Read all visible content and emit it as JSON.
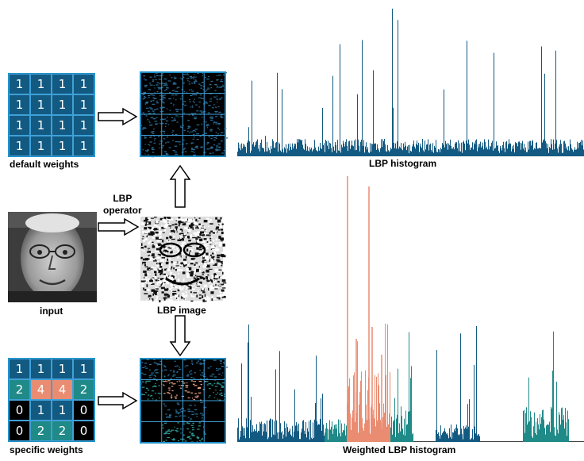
{
  "colors": {
    "blue": "#135a82",
    "teal": "#1f8a88",
    "salmon": "#ea8c72",
    "black": "#000000",
    "gridline": "#3fa0d8"
  },
  "labels": {
    "default_weights": "default weights",
    "specific_weights": "specific weights",
    "lbp_operator": "LBP\noperator",
    "input": "input",
    "lbp_image": "LBP image",
    "lbp_histogram": "LBP histogram",
    "weighted_lbp_histogram": "Weighted LBP histogram"
  },
  "default_weights_matrix": [
    [
      "1",
      "1",
      "1",
      "1"
    ],
    [
      "1",
      "1",
      "1",
      "1"
    ],
    [
      "1",
      "1",
      "1",
      "1"
    ],
    [
      "1",
      "1",
      "1",
      "1"
    ]
  ],
  "specific_weights_matrix": [
    [
      "1",
      "1",
      "1",
      "1"
    ],
    [
      "2",
      "4",
      "4",
      "2"
    ],
    [
      "0",
      "1",
      "1",
      "0"
    ],
    [
      "0",
      "2",
      "2",
      "0"
    ]
  ],
  "weight_colors": {
    "0": "#000000",
    "1": "#135a82",
    "2": "#1f8a88",
    "4": "#ea8c72"
  },
  "icons": {
    "face_photo": "face-photo",
    "lbp_texture": "lbp-texture-image",
    "arrow": "hollow-arrow"
  }
}
